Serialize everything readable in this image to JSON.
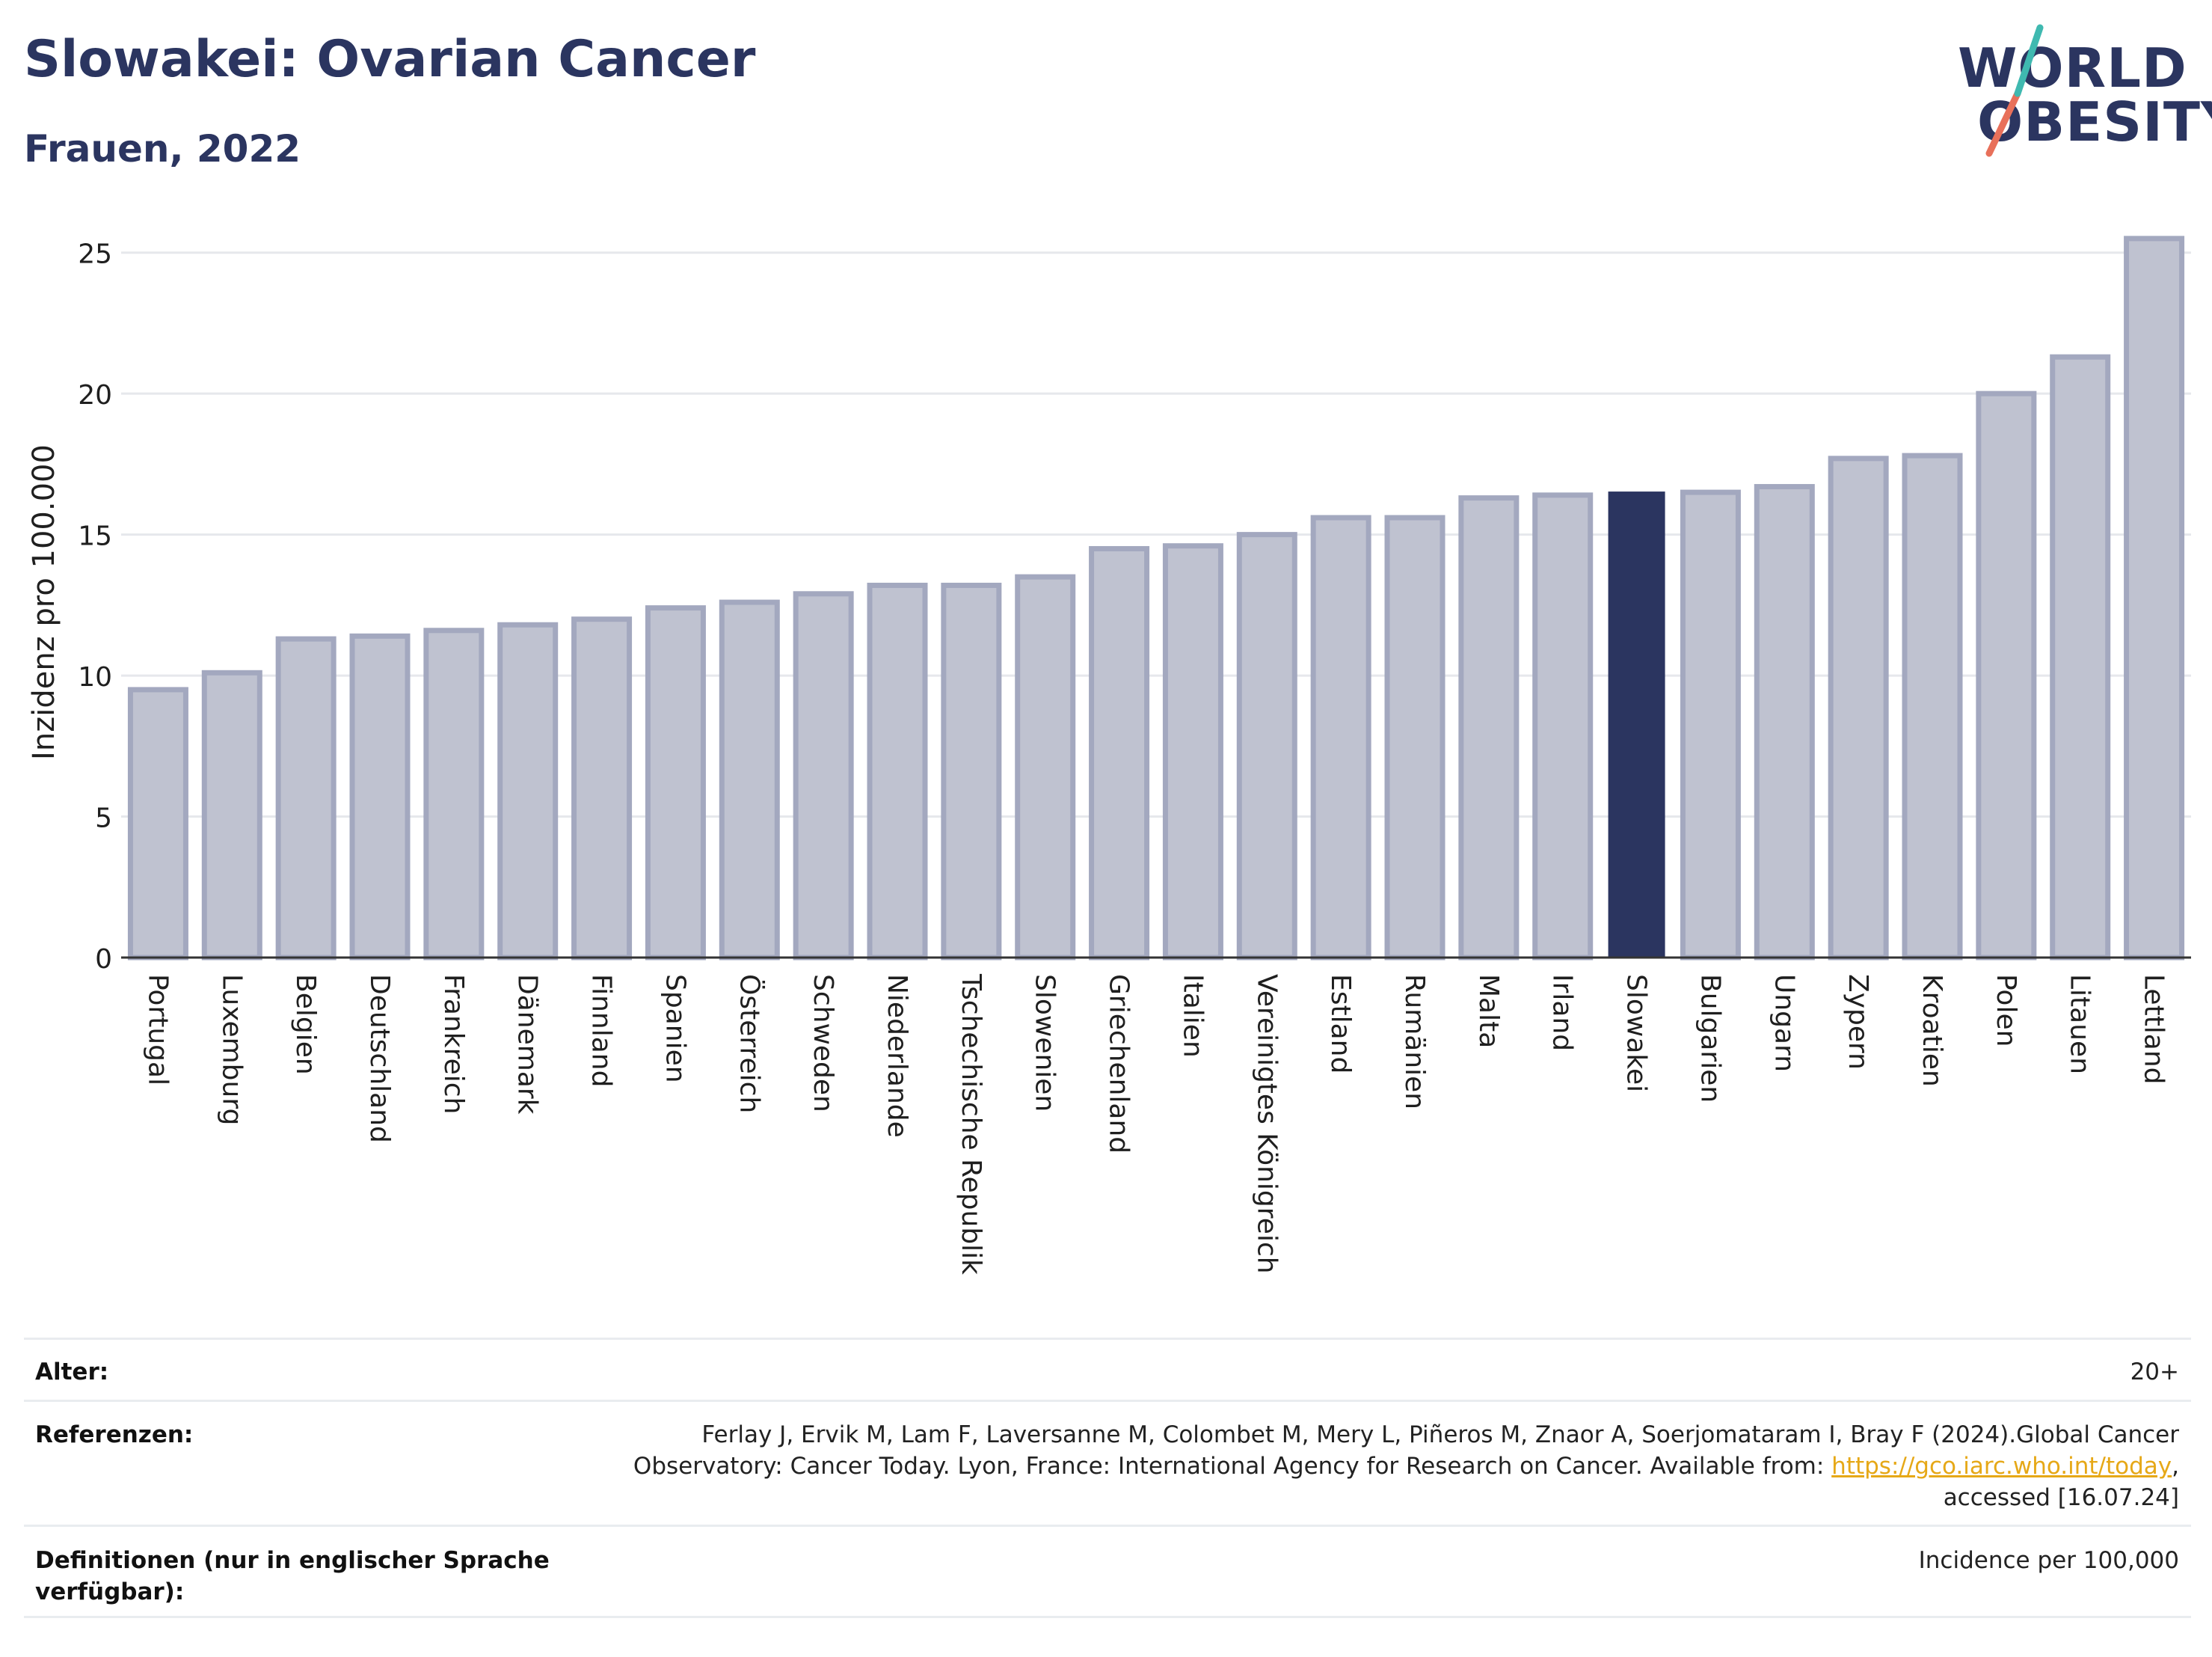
{
  "header": {
    "title": "Slowakei: Ovarian Cancer",
    "subtitle": "Frauen, 2022"
  },
  "logo": {
    "line1": "WORLD",
    "line2": "OBESITY"
  },
  "colors": {
    "bar": "#bfc2d0",
    "bar_border": "#a3a8bf",
    "highlight": "#2b3560",
    "accent_teal": "#3fb9b0",
    "accent_coral": "#e8705a"
  },
  "chart_data": {
    "type": "bar",
    "title": "Slowakei: Ovarian Cancer",
    "subtitle": "Frauen, 2022",
    "xlabel": "",
    "ylabel": "Inzidenz pro 100.000",
    "ylim": [
      0,
      26
    ],
    "yticks": [
      0,
      5,
      10,
      15,
      20,
      25
    ],
    "grid": true,
    "highlight": "Slowakei",
    "categories": [
      "Portugal",
      "Luxemburg",
      "Belgien",
      "Deutschland",
      "Frankreich",
      "Dänemark",
      "Finnland",
      "Spanien",
      "Österreich",
      "Schweden",
      "Niederlande",
      "Tschechische Republik",
      "Slowenien",
      "Griechenland",
      "Italien",
      "Vereinigtes Königreich",
      "Estland",
      "Rumänien",
      "Malta",
      "Irland",
      "Slowakei",
      "Bulgarien",
      "Ungarn",
      "Zypern",
      "Kroatien",
      "Polen",
      "Litauen",
      "Lettland"
    ],
    "values": [
      9.5,
      10.1,
      11.3,
      11.4,
      11.6,
      11.8,
      12.0,
      12.4,
      12.6,
      12.9,
      13.2,
      13.2,
      13.5,
      14.5,
      14.6,
      15.0,
      15.6,
      15.6,
      16.3,
      16.4,
      16.5,
      16.5,
      16.7,
      17.7,
      17.8,
      20.0,
      21.3,
      25.5
    ]
  },
  "footer": {
    "age_label": "Alter:",
    "age_value": "20+",
    "ref_label": "Referenzen:",
    "ref_line1": "Ferlay J, Ervik M, Lam F, Laversanne M, Colombet M, Mery L, Piñeros M, Znaor A, Soerjomataram I, Bray F (2024).Global Cancer",
    "ref_line2_pre": "Observatory: Cancer Today. Lyon, France: International Agency for Research on Cancer. Available from: ",
    "ref_link": "https://gco.iarc.who.int/today",
    "ref_line2_post": ",",
    "ref_line3": "accessed [16.07.24]",
    "def_label": "Definitionen (nur in englischer Sprache verfügbar):",
    "def_value": "Incidence per 100,000"
  }
}
